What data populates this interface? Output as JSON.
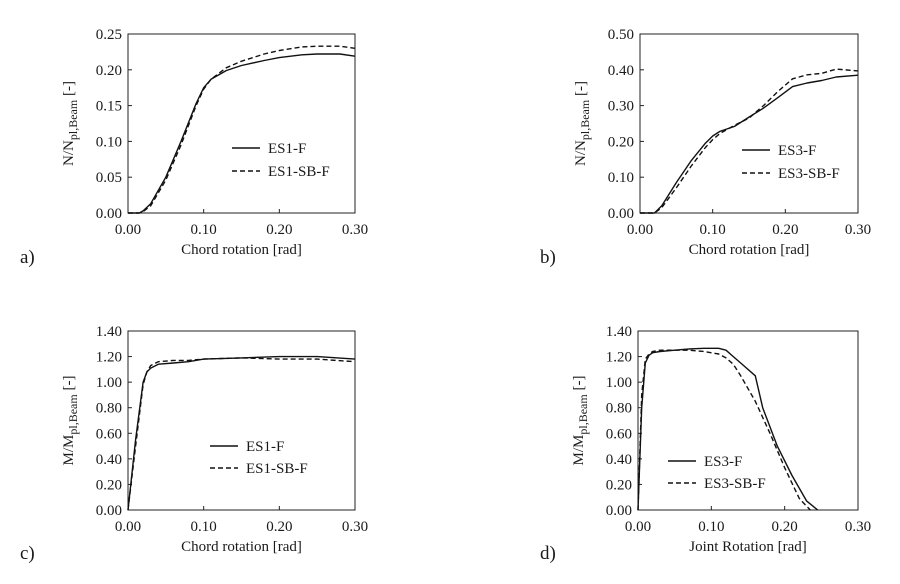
{
  "chart_data": [
    {
      "type": "line",
      "panel_label": "a)",
      "xlabel": "Chord rotation [rad]",
      "ylabel": "N/Npl,Beam [-]",
      "ylabel_parts": {
        "pre": "N/N",
        "sub": "pl,Beam",
        "post": " [-]"
      },
      "xlim": [
        0,
        0.3
      ],
      "ylim": [
        0,
        0.25
      ],
      "xticks": [
        "0.00",
        "0.10",
        "0.20",
        "0.30"
      ],
      "yticks": [
        "0.00",
        "0.05",
        "0.10",
        "0.15",
        "0.20",
        "0.25"
      ],
      "legend_position": "center-right",
      "series": [
        {
          "name": "ES1-F",
          "style": "solid",
          "x": [
            0,
            0.015,
            0.02,
            0.03,
            0.05,
            0.07,
            0.09,
            0.1,
            0.11,
            0.13,
            0.15,
            0.18,
            0.2,
            0.23,
            0.25,
            0.28,
            0.3
          ],
          "y": [
            0,
            0.0,
            0.003,
            0.013,
            0.05,
            0.1,
            0.153,
            0.175,
            0.187,
            0.199,
            0.206,
            0.213,
            0.217,
            0.221,
            0.222,
            0.222,
            0.219
          ]
        },
        {
          "name": "ES1-SB-F",
          "style": "dashed",
          "x": [
            0,
            0.015,
            0.02,
            0.03,
            0.05,
            0.07,
            0.09,
            0.1,
            0.11,
            0.13,
            0.15,
            0.18,
            0.2,
            0.23,
            0.25,
            0.28,
            0.3
          ],
          "y": [
            0,
            0.0,
            0.002,
            0.01,
            0.046,
            0.095,
            0.15,
            0.173,
            0.187,
            0.203,
            0.212,
            0.222,
            0.227,
            0.232,
            0.233,
            0.233,
            0.23
          ]
        }
      ]
    },
    {
      "type": "line",
      "panel_label": "b)",
      "xlabel": "Chord rotation [rad]",
      "ylabel": "N/Npl,Beam [-]",
      "ylabel_parts": {
        "pre": "N/N",
        "sub": "pl,Beam",
        "post": " [-]"
      },
      "xlim": [
        0,
        0.3
      ],
      "ylim": [
        0,
        0.5
      ],
      "xticks": [
        "0.00",
        "0.10",
        "0.20",
        "0.30"
      ],
      "yticks": [
        "0.00",
        "0.10",
        "0.20",
        "0.30",
        "0.40",
        "0.50"
      ],
      "legend_position": "center-right",
      "series": [
        {
          "name": "ES3-F",
          "style": "solid",
          "x": [
            0,
            0.02,
            0.03,
            0.05,
            0.07,
            0.09,
            0.1,
            0.11,
            0.13,
            0.15,
            0.17,
            0.19,
            0.21,
            0.23,
            0.25,
            0.27,
            0.3
          ],
          "y": [
            0,
            0.0,
            0.02,
            0.085,
            0.145,
            0.195,
            0.215,
            0.228,
            0.242,
            0.268,
            0.293,
            0.323,
            0.353,
            0.363,
            0.37,
            0.38,
            0.385
          ]
        },
        {
          "name": "ES3-SB-F",
          "style": "dashed",
          "x": [
            0,
            0.02,
            0.03,
            0.05,
            0.07,
            0.09,
            0.1,
            0.11,
            0.13,
            0.15,
            0.17,
            0.19,
            0.21,
            0.23,
            0.25,
            0.27,
            0.3
          ],
          "y": [
            0,
            0.0,
            0.015,
            0.07,
            0.13,
            0.183,
            0.205,
            0.222,
            0.245,
            0.265,
            0.3,
            0.34,
            0.375,
            0.386,
            0.39,
            0.402,
            0.397
          ]
        }
      ]
    },
    {
      "type": "line",
      "panel_label": "c)",
      "xlabel": "Chord rotation [rad]",
      "ylabel": "M/Mpl,Beam [-]",
      "ylabel_parts": {
        "pre": "M/M",
        "sub": "pl,Beam",
        "post": " [-]"
      },
      "xlim": [
        0,
        0.3
      ],
      "ylim": [
        0,
        1.4
      ],
      "xticks": [
        "0.00",
        "0.10",
        "0.20",
        "0.30"
      ],
      "yticks": [
        "0.00",
        "0.20",
        "0.40",
        "0.60",
        "0.80",
        "1.00",
        "1.20",
        "1.40"
      ],
      "legend_position": "center-right",
      "series": [
        {
          "name": "ES1-F",
          "style": "solid",
          "x": [
            0,
            0.01,
            0.02,
            0.025,
            0.03,
            0.04,
            0.06,
            0.08,
            0.1,
            0.15,
            0.2,
            0.25,
            0.3
          ],
          "y": [
            0,
            0.55,
            1.0,
            1.08,
            1.11,
            1.14,
            1.15,
            1.16,
            1.18,
            1.19,
            1.2,
            1.2,
            1.18
          ]
        },
        {
          "name": "ES1-SB-F",
          "style": "dashed",
          "x": [
            0,
            0.01,
            0.02,
            0.025,
            0.03,
            0.04,
            0.06,
            0.08,
            0.1,
            0.15,
            0.2,
            0.25,
            0.3
          ],
          "y": [
            0,
            0.5,
            0.98,
            1.08,
            1.13,
            1.16,
            1.17,
            1.17,
            1.18,
            1.19,
            1.18,
            1.18,
            1.16
          ]
        }
      ]
    },
    {
      "type": "line",
      "panel_label": "d)",
      "xlabel": "Joint Rotation [rad]",
      "ylabel": "M/Mpl,Beam [-]",
      "ylabel_parts": {
        "pre": "M/M",
        "sub": "pl,Beam",
        "post": " [-]"
      },
      "xlim": [
        0,
        0.3
      ],
      "ylim": [
        0,
        1.4
      ],
      "xticks": [
        "0.00",
        "0.10",
        "0.20",
        "0.30"
      ],
      "yticks": [
        "0.00",
        "0.20",
        "0.40",
        "0.60",
        "0.80",
        "1.00",
        "1.20",
        "1.40"
      ],
      "legend_position": "bottom-left",
      "series": [
        {
          "name": "ES3-F",
          "style": "solid",
          "x": [
            0,
            0.005,
            0.01,
            0.015,
            0.02,
            0.03,
            0.05,
            0.07,
            0.09,
            0.11,
            0.12,
            0.13,
            0.14,
            0.16,
            0.17,
            0.19,
            0.21,
            0.23,
            0.245
          ],
          "y": [
            0,
            0.8,
            1.15,
            1.21,
            1.23,
            1.24,
            1.25,
            1.26,
            1.265,
            1.265,
            1.25,
            1.2,
            1.15,
            1.05,
            0.8,
            0.5,
            0.27,
            0.07,
            0
          ]
        },
        {
          "name": "ES3-SB-F",
          "style": "dashed",
          "x": [
            0,
            0.005,
            0.01,
            0.015,
            0.02,
            0.03,
            0.05,
            0.07,
            0.09,
            0.11,
            0.12,
            0.13,
            0.14,
            0.16,
            0.18,
            0.2,
            0.22,
            0.235
          ],
          "y": [
            0,
            0.9,
            1.18,
            1.22,
            1.24,
            1.25,
            1.25,
            1.25,
            1.24,
            1.22,
            1.19,
            1.14,
            1.05,
            0.85,
            0.6,
            0.33,
            0.09,
            0
          ]
        }
      ]
    }
  ]
}
